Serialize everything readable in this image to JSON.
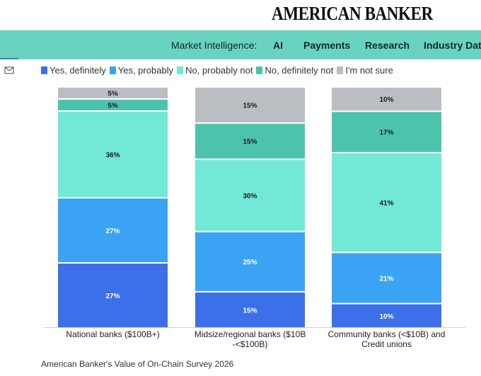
{
  "header": {
    "brand": "AMERICAN BANKER"
  },
  "nav": {
    "prefix": "Market Intelligence:",
    "items": [
      "AI",
      "Payments",
      "Research",
      "Industry Data"
    ]
  },
  "icons": {
    "mail": "mail-icon"
  },
  "chart_data": {
    "type": "bar",
    "stacked": true,
    "categories": [
      "National banks ($100B+)",
      "Midsize/regional banks ($10B -<$100B)",
      "Community banks (<$10B) and Credit unions"
    ],
    "category_lines": [
      [
        "National banks ($100B+)"
      ],
      [
        "Midsize/regional banks ($10B",
        "-<$100B)"
      ],
      [
        "Community banks (<$10B) and",
        "Credit unions"
      ]
    ],
    "series": [
      {
        "name": "Yes, definitely",
        "values": [
          27,
          15,
          10
        ],
        "color": "#3d6fe8"
      },
      {
        "name": "Yes, probably",
        "values": [
          27,
          25,
          21
        ],
        "color": "#3aa3f3"
      },
      {
        "name": "No, probably not",
        "values": [
          36,
          30,
          41
        ],
        "color": "#72e8d6"
      },
      {
        "name": "No, definitely not",
        "values": [
          5,
          15,
          17
        ],
        "color": "#4cc4ad"
      },
      {
        "name": "I'm not sure",
        "values": [
          5,
          15,
          10
        ],
        "color": "#babec2"
      }
    ],
    "data_label_suffix": "%",
    "ylim": [
      0,
      100
    ],
    "grid": false,
    "legend_position": "top-left"
  },
  "footer": {
    "source": "American Banker's Value of On-Chain Survey 2026"
  }
}
